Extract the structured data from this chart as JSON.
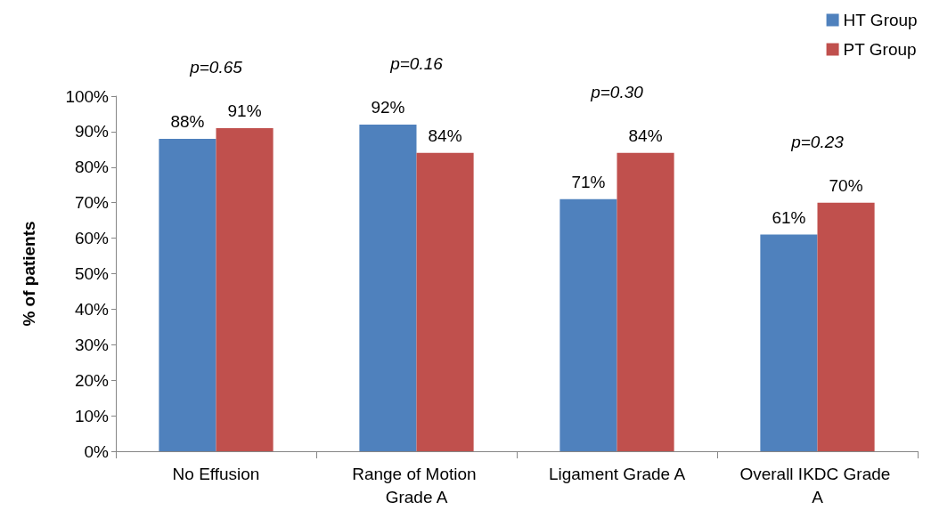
{
  "chart_data": {
    "type": "bar",
    "ylabel": "% of patients",
    "categories": [
      "No Effusion",
      "Range of Motion Grade A",
      "Ligament Grade A",
      "Overall IKDC Grade A"
    ],
    "series": [
      {
        "name": "HT Group",
        "color": "#4f81bd",
        "values": [
          88,
          92,
          71,
          61
        ],
        "value_labels": [
          "88%",
          "92%",
          "71%",
          "61%"
        ]
      },
      {
        "name": "PT Group",
        "color": "#c0504d",
        "values": [
          91,
          84,
          84,
          70
        ],
        "value_labels": [
          "91%",
          "84%",
          "84%",
          "70%"
        ]
      }
    ],
    "ylim": [
      0,
      100
    ],
    "yticks": [
      {
        "value": 0,
        "label": "0%"
      },
      {
        "value": 10,
        "label": "10%"
      },
      {
        "value": 20,
        "label": "20%"
      },
      {
        "value": 30,
        "label": "30%"
      },
      {
        "value": 40,
        "label": "40%"
      },
      {
        "value": 50,
        "label": "50%"
      },
      {
        "value": 60,
        "label": "60%"
      },
      {
        "value": 70,
        "label": "70%"
      },
      {
        "value": 80,
        "label": "80%"
      },
      {
        "value": 90,
        "label": "90%"
      },
      {
        "value": 100,
        "label": "100%"
      }
    ],
    "annotations": [
      "p=0.65",
      "p=0.16",
      "p=0.30",
      "p=0.23"
    ],
    "grid": false,
    "legend": "top right"
  }
}
